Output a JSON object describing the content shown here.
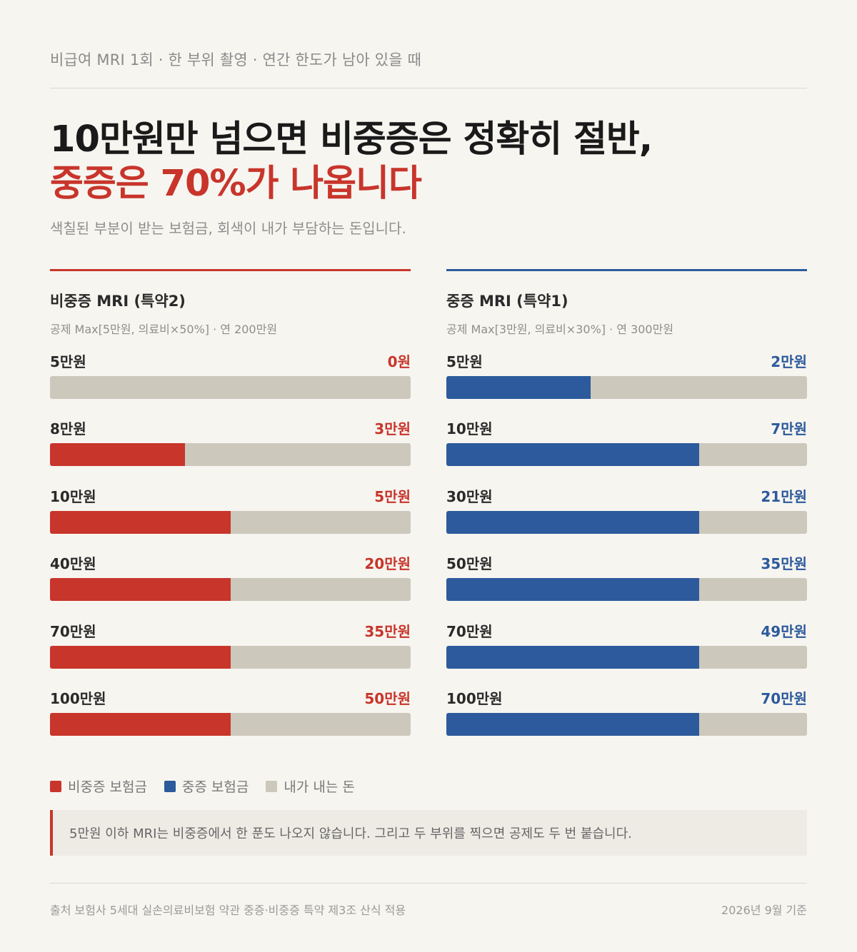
{
  "kicker": "비급여 MRI 1회 · 한 부위 촬영 · 연간 한도가 남아 있을 때",
  "headline": {
    "line1": "10만원만 넘으면 비중증은 정확히 절반,",
    "line2": "중증은 70%가 나옵니다"
  },
  "subtitle": "색칠된 부분이 받는 보험금, 회색이 내가 부담하는 돈입니다.",
  "colors": {
    "non_severe": "#c8352b",
    "severe": "#2c5a9c",
    "self_pay": "#cdc8bc"
  },
  "chart_data": [
    {
      "type": "bar",
      "orientation": "horizontal",
      "stacked": true,
      "title": "비중증 MRI (특약2)",
      "subtitle": "공제 Max[5만원, 의료비×50%] · 연 200만원",
      "unit": "만원",
      "categories": [
        "5만원",
        "8만원",
        "10만원",
        "40만원",
        "70만원",
        "100만원"
      ],
      "bill_values": [
        5,
        8,
        10,
        40,
        70,
        100
      ],
      "series": [
        {
          "name": "비중증 보험금",
          "values": [
            0,
            3,
            5,
            20,
            35,
            50
          ],
          "color": "#c8352b"
        }
      ],
      "value_labels": [
        "0원",
        "3만원",
        "5만원",
        "20만원",
        "35만원",
        "50만원"
      ]
    },
    {
      "type": "bar",
      "orientation": "horizontal",
      "stacked": true,
      "title": "중증 MRI (특약1)",
      "subtitle": "공제 Max[3만원, 의료비×30%] · 연 300만원",
      "unit": "만원",
      "categories": [
        "5만원",
        "10만원",
        "30만원",
        "50만원",
        "70만원",
        "100만원"
      ],
      "bill_values": [
        5,
        10,
        30,
        50,
        70,
        100
      ],
      "series": [
        {
          "name": "중증 보험금",
          "values": [
            2,
            7,
            21,
            35,
            49,
            70
          ],
          "color": "#2c5a9c"
        }
      ],
      "value_labels": [
        "2만원",
        "7만원",
        "21만원",
        "35만원",
        "49만원",
        "70만원"
      ]
    }
  ],
  "legend": [
    {
      "label": "비중증 보험금",
      "color": "#c8352b"
    },
    {
      "label": "중증 보험금",
      "color": "#2c5a9c"
    },
    {
      "label": "내가 내는 돈",
      "color": "#cdc8bc"
    }
  ],
  "note": "5만원 이하 MRI는 비중증에서 한 푼도 나오지 않습니다. 그리고 두 부위를 찍으면 공제도 두 번 붙습니다.",
  "footer": {
    "source": "출처 보험사 5세대 실손의료비보험 약관 중증·비중증 특약 제3조 산식 적용",
    "date": "2026년 9월 기준"
  }
}
